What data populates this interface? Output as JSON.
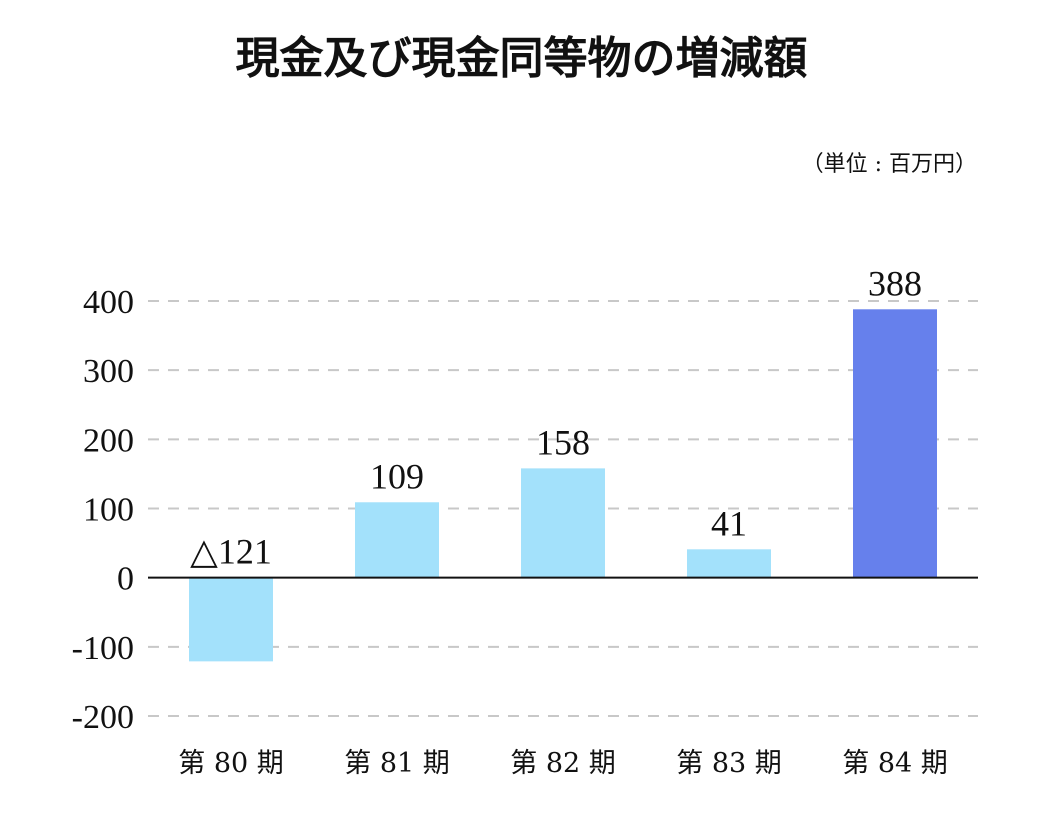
{
  "title": "現金及び現金同等物の増減額",
  "unit_label": "（単位 : 百万円）",
  "chart_data": {
    "type": "bar",
    "title": "現金及び現金同等物の増減額",
    "xlabel": "",
    "ylabel": "",
    "unit": "百万円",
    "categories": [
      "第 80 期",
      "第 81 期",
      "第 82 期",
      "第 83 期",
      "第 84 期"
    ],
    "values": [
      -121,
      109,
      158,
      41,
      388
    ],
    "data_labels": [
      "△121",
      "109",
      "158",
      "41",
      "388"
    ],
    "ylim": [
      -200,
      400
    ],
    "yticks": [
      400,
      300,
      200,
      100,
      0,
      -100,
      -200
    ],
    "ytick_labels": [
      "400",
      "300",
      "200",
      "100",
      "0",
      "-100",
      "-200"
    ],
    "grid": true,
    "colors": [
      "#a3e1fb",
      "#a3e1fb",
      "#a3e1fb",
      "#a3e1fb",
      "#6680ec"
    ]
  }
}
